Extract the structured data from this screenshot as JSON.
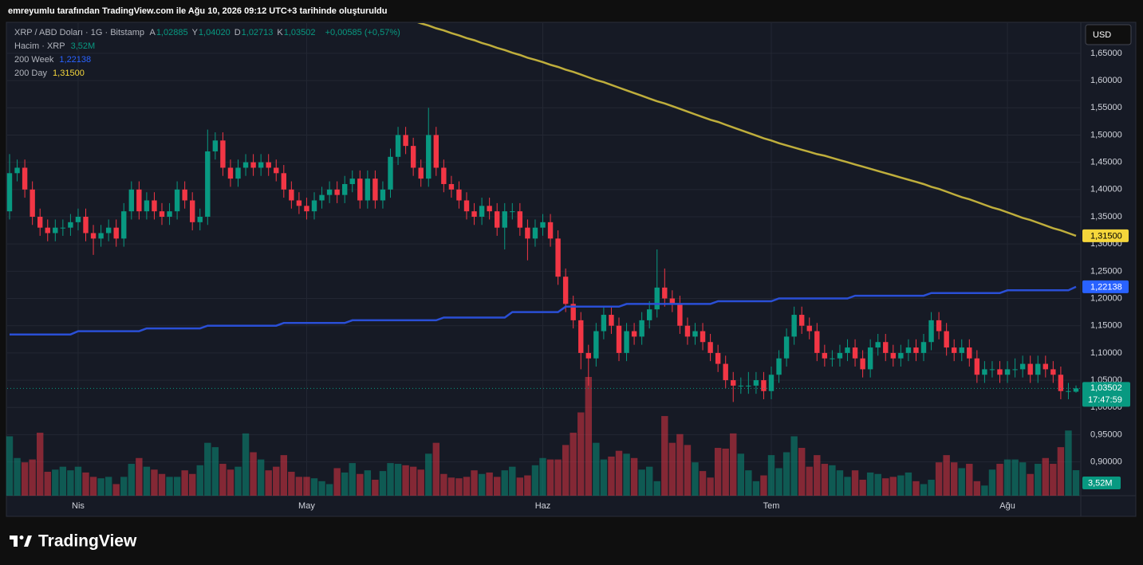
{
  "chart_data": {
    "type": "candlestick",
    "header": "emreyumlu tarafından TradingView.com ile Ağu 10, 2026 09:12 UTC+3 tarihinde oluşturuldu",
    "symbol": "XRP / ABD Doları · 1G · Bitstamp",
    "ohlc_legend": [
      {
        "key": "A",
        "value": "1,02885"
      },
      {
        "key": "Y",
        "value": "1,04020"
      },
      {
        "key": "D",
        "value": "1,02713"
      },
      {
        "key": "K",
        "value": "1,03502"
      }
    ],
    "change": "+0,00585 (+0,57%)",
    "volume_name": "Hacim · XRP",
    "volume_last_label": "3,52M",
    "currency": "USD",
    "close_label": "1,03502",
    "countdown": "17:47:59",
    "brand": "TradingView",
    "up_color": "#089981",
    "down_color": "#f23645",
    "categories": [
      null,
      null,
      null,
      null,
      null,
      null,
      null,
      null,
      null,
      "Nis",
      null,
      null,
      null,
      null,
      null,
      null,
      null,
      null,
      null,
      null,
      null,
      null,
      null,
      null,
      null,
      null,
      null,
      null,
      null,
      null,
      null,
      null,
      null,
      null,
      null,
      null,
      null,
      null,
      null,
      "May",
      null,
      null,
      null,
      null,
      null,
      null,
      null,
      null,
      null,
      null,
      null,
      null,
      null,
      null,
      null,
      null,
      null,
      null,
      null,
      null,
      null,
      null,
      null,
      null,
      null,
      null,
      null,
      null,
      null,
      null,
      "Haz",
      null,
      null,
      null,
      null,
      null,
      null,
      null,
      null,
      null,
      null,
      null,
      null,
      null,
      null,
      null,
      null,
      null,
      null,
      null,
      null,
      null,
      null,
      null,
      null,
      null,
      null,
      null,
      null,
      null,
      "Tem",
      null,
      null,
      null,
      null,
      null,
      null,
      null,
      null,
      null,
      null,
      null,
      null,
      null,
      null,
      null,
      null,
      null,
      null,
      null,
      null,
      null,
      null,
      null,
      null,
      null,
      null,
      null,
      null,
      null,
      null,
      "Ağu",
      null,
      null,
      null,
      null,
      null,
      null,
      null,
      null,
      null
    ],
    "open": [
      1.36,
      1.43,
      1.44,
      1.4,
      1.35,
      1.33,
      1.32,
      1.33,
      1.33,
      1.34,
      1.35,
      1.32,
      1.31,
      1.32,
      1.33,
      1.31,
      1.36,
      1.4,
      1.36,
      1.38,
      1.36,
      1.35,
      1.36,
      1.4,
      1.38,
      1.34,
      1.35,
      1.47,
      1.49,
      1.44,
      1.42,
      1.44,
      1.45,
      1.44,
      1.45,
      1.44,
      1.43,
      1.4,
      1.38,
      1.37,
      1.36,
      1.38,
      1.39,
      1.4,
      1.39,
      1.41,
      1.42,
      1.38,
      1.42,
      1.38,
      1.4,
      1.46,
      1.5,
      1.48,
      1.44,
      1.42,
      1.5,
      1.44,
      1.41,
      1.4,
      1.38,
      1.36,
      1.35,
      1.37,
      1.36,
      1.33,
      1.36,
      1.36,
      1.33,
      1.31,
      1.33,
      1.34,
      1.31,
      1.24,
      1.19,
      1.16,
      1.1,
      1.09,
      1.14,
      1.17,
      1.15,
      1.1,
      1.14,
      1.13,
      1.16,
      1.18,
      1.22,
      1.2,
      1.19,
      1.15,
      1.13,
      1.14,
      1.12,
      1.1,
      1.08,
      1.05,
      1.04,
      1.04,
      1.04,
      1.05,
      1.03,
      1.06,
      1.09,
      1.13,
      1.17,
      1.15,
      1.14,
      1.1,
      1.09,
      1.09,
      1.1,
      1.11,
      1.09,
      1.07,
      1.11,
      1.12,
      1.1,
      1.09,
      1.1,
      1.11,
      1.1,
      1.12,
      1.16,
      1.14,
      1.11,
      1.1,
      1.11,
      1.09,
      1.06,
      1.07,
      1.07,
      1.06,
      1.07,
      1.07,
      1.08,
      1.06,
      1.08,
      1.07,
      1.06,
      1.03,
      1.02885
    ],
    "high": [
      1.465,
      1.455,
      1.455,
      1.415,
      1.365,
      1.345,
      1.345,
      1.345,
      1.355,
      1.365,
      1.365,
      1.335,
      1.335,
      1.345,
      1.345,
      1.375,
      1.415,
      1.415,
      1.395,
      1.395,
      1.375,
      1.375,
      1.415,
      1.415,
      1.395,
      1.365,
      1.51,
      1.505,
      1.505,
      1.455,
      1.455,
      1.465,
      1.465,
      1.465,
      1.465,
      1.455,
      1.445,
      1.415,
      1.395,
      1.385,
      1.395,
      1.405,
      1.415,
      1.415,
      1.425,
      1.435,
      1.435,
      1.435,
      1.435,
      1.415,
      1.475,
      1.515,
      1.515,
      1.495,
      1.455,
      1.55,
      1.515,
      1.455,
      1.425,
      1.415,
      1.395,
      1.375,
      1.385,
      1.385,
      1.375,
      1.375,
      1.375,
      1.375,
      1.345,
      1.345,
      1.355,
      1.355,
      1.325,
      1.255,
      1.205,
      1.175,
      1.115,
      1.155,
      1.185,
      1.185,
      1.165,
      1.155,
      1.155,
      1.175,
      1.195,
      1.29,
      1.255,
      1.215,
      1.205,
      1.165,
      1.155,
      1.155,
      1.135,
      1.115,
      1.095,
      1.065,
      1.055,
      1.065,
      1.065,
      1.065,
      1.075,
      1.105,
      1.145,
      1.185,
      1.185,
      1.165,
      1.155,
      1.115,
      1.105,
      1.115,
      1.125,
      1.125,
      1.105,
      1.125,
      1.135,
      1.135,
      1.115,
      1.115,
      1.125,
      1.125,
      1.135,
      1.175,
      1.175,
      1.155,
      1.125,
      1.125,
      1.125,
      1.105,
      1.085,
      1.085,
      1.085,
      1.085,
      1.09,
      1.095,
      1.095,
      1.095,
      1.095,
      1.085,
      1.075,
      1.045,
      1.0402
    ],
    "low": [
      1.345,
      1.415,
      1.385,
      1.335,
      1.315,
      1.305,
      1.305,
      1.315,
      1.315,
      1.325,
      1.305,
      1.28,
      1.295,
      1.305,
      1.295,
      1.295,
      1.345,
      1.345,
      1.345,
      1.345,
      1.335,
      1.335,
      1.345,
      1.365,
      1.325,
      1.325,
      1.335,
      1.455,
      1.425,
      1.405,
      1.405,
      1.425,
      1.425,
      1.425,
      1.425,
      1.415,
      1.385,
      1.365,
      1.355,
      1.345,
      1.345,
      1.365,
      1.375,
      1.375,
      1.375,
      1.395,
      1.365,
      1.365,
      1.365,
      1.365,
      1.385,
      1.445,
      1.465,
      1.425,
      1.405,
      1.405,
      1.425,
      1.395,
      1.385,
      1.365,
      1.345,
      1.335,
      1.335,
      1.345,
      1.315,
      1.29,
      1.345,
      1.315,
      1.27,
      1.295,
      1.315,
      1.295,
      1.225,
      1.175,
      1.145,
      1.07,
      1.04,
      1.075,
      1.125,
      1.135,
      1.085,
      1.085,
      1.115,
      1.115,
      1.145,
      1.165,
      1.185,
      1.175,
      1.135,
      1.115,
      1.115,
      1.105,
      1.085,
      1.065,
      1.035,
      1.01,
      1.025,
      1.025,
      1.025,
      1.015,
      1.015,
      1.045,
      1.075,
      1.115,
      1.135,
      1.125,
      1.085,
      1.075,
      1.075,
      1.075,
      1.085,
      1.075,
      1.055,
      1.055,
      1.095,
      1.085,
      1.075,
      1.075,
      1.085,
      1.085,
      1.085,
      1.105,
      1.125,
      1.095,
      1.085,
      1.085,
      1.075,
      1.045,
      1.045,
      1.055,
      1.045,
      1.045,
      1.055,
      1.055,
      1.045,
      1.045,
      1.055,
      1.045,
      1.015,
      1.015,
      1.02713
    ],
    "close": [
      1.43,
      1.44,
      1.4,
      1.35,
      1.33,
      1.32,
      1.33,
      1.33,
      1.34,
      1.35,
      1.32,
      1.31,
      1.32,
      1.33,
      1.31,
      1.36,
      1.4,
      1.36,
      1.38,
      1.36,
      1.35,
      1.36,
      1.4,
      1.38,
      1.34,
      1.35,
      1.47,
      1.49,
      1.44,
      1.42,
      1.44,
      1.45,
      1.44,
      1.45,
      1.44,
      1.43,
      1.4,
      1.38,
      1.37,
      1.36,
      1.38,
      1.39,
      1.4,
      1.39,
      1.41,
      1.42,
      1.38,
      1.42,
      1.38,
      1.4,
      1.46,
      1.5,
      1.48,
      1.44,
      1.42,
      1.5,
      1.44,
      1.41,
      1.4,
      1.38,
      1.36,
      1.35,
      1.37,
      1.36,
      1.33,
      1.36,
      1.36,
      1.33,
      1.31,
      1.33,
      1.34,
      1.31,
      1.24,
      1.19,
      1.16,
      1.1,
      1.09,
      1.14,
      1.17,
      1.15,
      1.1,
      1.14,
      1.13,
      1.16,
      1.18,
      1.22,
      1.2,
      1.19,
      1.15,
      1.13,
      1.14,
      1.12,
      1.1,
      1.08,
      1.05,
      1.04,
      1.04,
      1.04,
      1.05,
      1.03,
      1.06,
      1.09,
      1.13,
      1.17,
      1.15,
      1.14,
      1.1,
      1.09,
      1.09,
      1.1,
      1.11,
      1.09,
      1.07,
      1.11,
      1.12,
      1.1,
      1.09,
      1.1,
      1.11,
      1.1,
      1.12,
      1.16,
      1.14,
      1.11,
      1.1,
      1.11,
      1.09,
      1.06,
      1.07,
      1.07,
      1.06,
      1.07,
      1.07,
      1.08,
      1.06,
      1.08,
      1.07,
      1.06,
      1.03,
      1.03,
      1.03502
    ],
    "volume": [
      8.2,
      5.2,
      4.6,
      5.0,
      8.7,
      3.3,
      3.6,
      4.0,
      3.5,
      4.0,
      3.2,
      2.6,
      2.4,
      2.6,
      1.6,
      2.6,
      4.4,
      5.2,
      4.0,
      3.6,
      3.0,
      2.6,
      2.6,
      3.5,
      3.0,
      4.2,
      7.3,
      6.7,
      4.4,
      3.6,
      4.0,
      8.6,
      6.0,
      5.0,
      3.5,
      4.0,
      5.6,
      3.3,
      2.6,
      2.6,
      2.4,
      2.0,
      1.6,
      3.8,
      3.2,
      4.5,
      3.0,
      3.5,
      2.2,
      3.4,
      4.5,
      4.4,
      4.2,
      4.0,
      3.6,
      5.8,
      7.3,
      3.0,
      2.5,
      2.4,
      2.6,
      3.5,
      3.0,
      3.2,
      2.6,
      3.5,
      4.0,
      2.5,
      2.8,
      4.2,
      5.2,
      5.0,
      5.0,
      7.0,
      8.7,
      11.5,
      16.4,
      7.3,
      5.0,
      5.4,
      6.2,
      5.8,
      5.2,
      3.6,
      4.0,
      2.0,
      11.0,
      7.3,
      8.5,
      7.0,
      4.6,
      3.4,
      2.5,
      6.6,
      6.5,
      8.6,
      5.8,
      3.5,
      2.0,
      2.8,
      5.6,
      3.8,
      6.0,
      8.2,
      6.6,
      4.0,
      5.6,
      4.4,
      4.2,
      3.5,
      2.6,
      3.5,
      2.2,
      3.2,
      3.0,
      2.4,
      2.6,
      2.8,
      3.2,
      2.0,
      1.6,
      2.2,
      4.6,
      5.6,
      4.6,
      3.8,
      4.4,
      2.0,
      1.4,
      3.6,
      4.4,
      5.0,
      5.0,
      4.6,
      3.0,
      4.4,
      5.2,
      4.4,
      6.7,
      9.0,
      3.52
    ],
    "series": [
      {
        "name": "200 Week",
        "color": "#2a4fd6",
        "tag_color": "#2962ff",
        "last_label": "1,22138",
        "values": [
          1.134,
          1.134,
          1.134,
          1.134,
          1.134,
          1.134,
          1.134,
          1.134,
          1.134,
          1.14,
          1.14,
          1.14,
          1.14,
          1.14,
          1.14,
          1.14,
          1.14,
          1.14,
          1.145,
          1.145,
          1.145,
          1.145,
          1.145,
          1.145,
          1.145,
          1.145,
          1.15,
          1.15,
          1.15,
          1.15,
          1.15,
          1.15,
          1.15,
          1.15,
          1.15,
          1.15,
          1.155,
          1.155,
          1.155,
          1.155,
          1.155,
          1.155,
          1.155,
          1.155,
          1.155,
          1.16,
          1.16,
          1.16,
          1.16,
          1.16,
          1.16,
          1.16,
          1.16,
          1.16,
          1.16,
          1.16,
          1.16,
          1.165,
          1.165,
          1.165,
          1.165,
          1.165,
          1.165,
          1.165,
          1.165,
          1.165,
          1.175,
          1.175,
          1.175,
          1.175,
          1.175,
          1.175,
          1.175,
          1.185,
          1.185,
          1.185,
          1.185,
          1.185,
          1.185,
          1.185,
          1.185,
          1.19,
          1.19,
          1.19,
          1.19,
          1.19,
          1.19,
          1.19,
          1.19,
          1.19,
          1.19,
          1.19,
          1.19,
          1.195,
          1.195,
          1.195,
          1.195,
          1.195,
          1.195,
          1.195,
          1.195,
          1.2,
          1.2,
          1.2,
          1.2,
          1.2,
          1.2,
          1.2,
          1.2,
          1.2,
          1.2,
          1.205,
          1.205,
          1.205,
          1.205,
          1.205,
          1.205,
          1.205,
          1.205,
          1.205,
          1.205,
          1.21,
          1.21,
          1.21,
          1.21,
          1.21,
          1.21,
          1.21,
          1.21,
          1.21,
          1.21,
          1.215,
          1.215,
          1.215,
          1.215,
          1.215,
          1.215,
          1.215,
          1.215,
          1.215,
          1.22138
        ]
      },
      {
        "name": "200 Day",
        "color": "#bfae3c",
        "tag_color": "#f5d63b",
        "last_label": "1,31500",
        "values": [
          null,
          null,
          null,
          null,
          null,
          null,
          null,
          null,
          null,
          null,
          null,
          null,
          null,
          null,
          null,
          null,
          null,
          null,
          null,
          null,
          null,
          null,
          null,
          null,
          null,
          null,
          null,
          null,
          null,
          null,
          null,
          null,
          null,
          null,
          null,
          null,
          null,
          null,
          null,
          null,
          null,
          null,
          null,
          null,
          null,
          null,
          null,
          null,
          null,
          null,
          null,
          null,
          null,
          1.71,
          1.705,
          1.701,
          1.696,
          1.692,
          1.687,
          1.683,
          1.678,
          1.674,
          1.669,
          1.665,
          1.66,
          1.656,
          1.651,
          1.647,
          1.642,
          1.638,
          1.634,
          1.629,
          1.625,
          1.62,
          1.616,
          1.611,
          1.606,
          1.601,
          1.597,
          1.592,
          1.587,
          1.582,
          1.577,
          1.572,
          1.567,
          1.562,
          1.558,
          1.553,
          1.548,
          1.543,
          1.538,
          1.533,
          1.528,
          1.524,
          1.519,
          1.514,
          1.509,
          1.504,
          1.499,
          1.494,
          1.49,
          1.485,
          1.481,
          1.477,
          1.473,
          1.469,
          1.465,
          1.462,
          1.458,
          1.454,
          1.45,
          1.446,
          1.442,
          1.438,
          1.434,
          1.43,
          1.426,
          1.422,
          1.418,
          1.414,
          1.41,
          1.405,
          1.401,
          1.396,
          1.391,
          1.386,
          1.382,
          1.377,
          1.372,
          1.367,
          1.363,
          1.358,
          1.353,
          1.348,
          1.344,
          1.339,
          1.334,
          1.329,
          1.325,
          1.32,
          1.315
        ]
      }
    ],
    "ylim": [
      0.838,
      1.704
    ],
    "yticks": [
      {
        "value": 0.9,
        "label": "0,90000"
      },
      {
        "value": 0.95,
        "label": "0,95000"
      },
      {
        "value": 1.0,
        "label": "1,00000"
      },
      {
        "value": 1.05,
        "label": "1,05000"
      },
      {
        "value": 1.1,
        "label": "1,10000"
      },
      {
        "value": 1.15,
        "label": "1,15000"
      },
      {
        "value": 1.2,
        "label": "1,20000"
      },
      {
        "value": 1.25,
        "label": "1,25000"
      },
      {
        "value": 1.3,
        "label": "1,30000"
      },
      {
        "value": 1.35,
        "label": "1,35000"
      },
      {
        "value": 1.4,
        "label": "1,40000"
      },
      {
        "value": 1.45,
        "label": "1,45000"
      },
      {
        "value": 1.5,
        "label": "1,50000"
      },
      {
        "value": 1.55,
        "label": "1,55000"
      },
      {
        "value": 1.6,
        "label": "1,60000"
      },
      {
        "value": 1.65,
        "label": "1,65000"
      }
    ],
    "grid": true
  }
}
